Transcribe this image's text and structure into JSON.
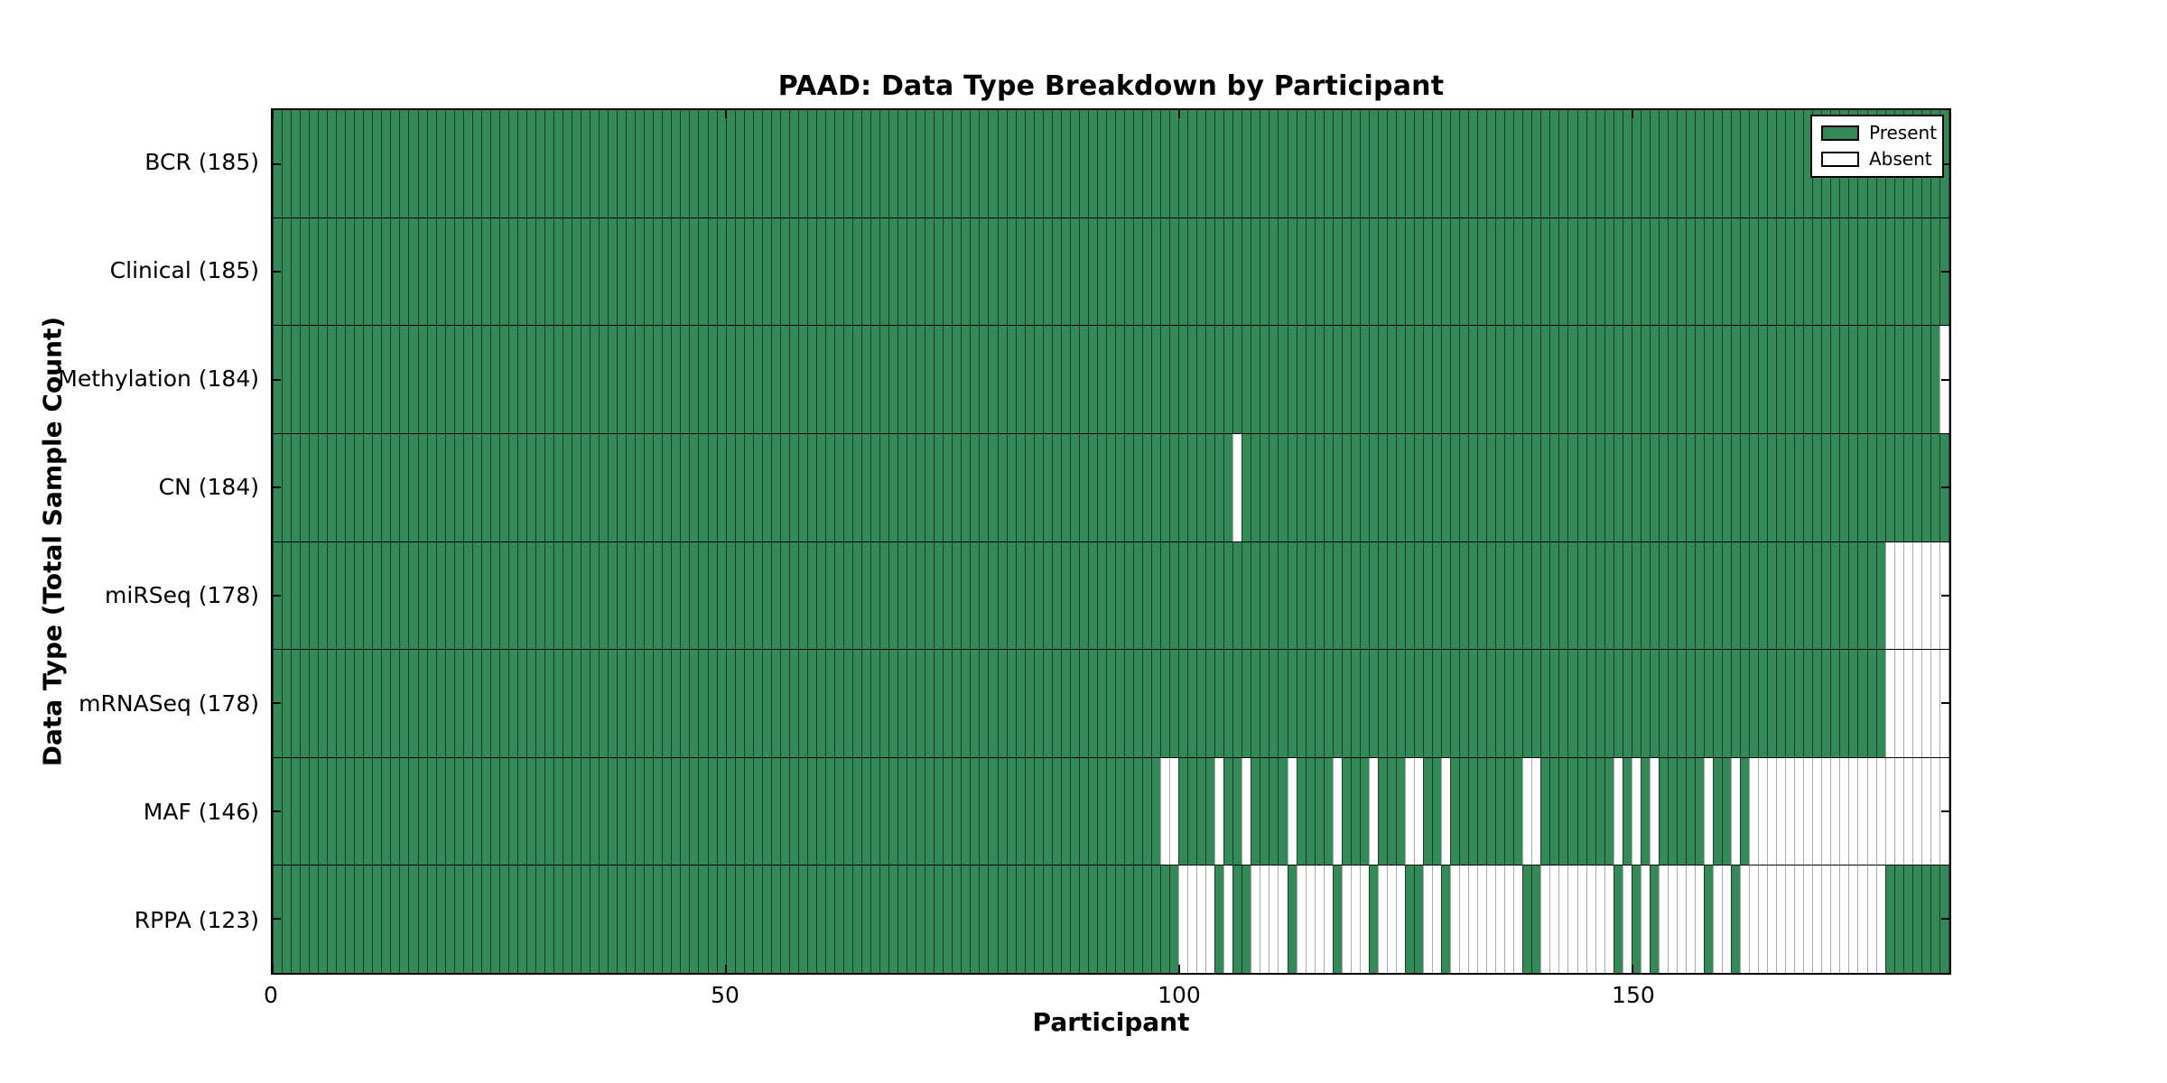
{
  "figure": {
    "background": "#ffffff"
  },
  "chart_data": {
    "type": "heatmap",
    "title": "PAAD: Data Type Breakdown by Participant",
    "xlabel": "Participant",
    "ylabel": "Data Type (Total Sample Count)",
    "n_participants": 185,
    "x_ticks": [
      0,
      50,
      100,
      150
    ],
    "x_range": [
      0,
      185
    ],
    "grid": false,
    "legend_position": "upper right",
    "legend": {
      "present_label": "Present",
      "absent_label": "Absent"
    },
    "colors": {
      "present": "#338a58",
      "absent": "#ffffff"
    },
    "value_encoding": "green bar = data type present for that participant, white bar = absent",
    "rows": [
      {
        "label": "BCR",
        "total_samples": 185,
        "display": "BCR (185)",
        "absent_ranges": []
      },
      {
        "label": "Clinical",
        "total_samples": 185,
        "display": "Clinical (185)",
        "absent_ranges": []
      },
      {
        "label": "Methylation",
        "total_samples": 184,
        "display": "Methylation (184)",
        "absent_ranges": [
          [
            184,
            184
          ]
        ]
      },
      {
        "label": "CN",
        "total_samples": 184,
        "display": "CN (184)",
        "absent_ranges": [
          [
            106,
            106
          ]
        ]
      },
      {
        "label": "miRSeq",
        "total_samples": 178,
        "display": "miRSeq (178)",
        "absent_ranges": [
          [
            178,
            184
          ]
        ]
      },
      {
        "label": "mRNASeq",
        "total_samples": 178,
        "display": "mRNASeq (178)",
        "absent_ranges": [
          [
            178,
            184
          ]
        ]
      },
      {
        "label": "MAF",
        "total_samples": 146,
        "display": "MAF (146)",
        "absent_ranges": [
          [
            98,
            99
          ],
          [
            104,
            104
          ],
          [
            107,
            107
          ],
          [
            112,
            112
          ],
          [
            117,
            117
          ],
          [
            121,
            121
          ],
          [
            125,
            126
          ],
          [
            129,
            129
          ],
          [
            138,
            139
          ],
          [
            148,
            148
          ],
          [
            150,
            150
          ],
          [
            152,
            152
          ],
          [
            158,
            158
          ],
          [
            161,
            161
          ],
          [
            163,
            184
          ]
        ]
      },
      {
        "label": "RPPA",
        "total_samples": 123,
        "display": "RPPA (123)",
        "absent_ranges": [
          [
            100,
            103
          ],
          [
            105,
            105
          ],
          [
            108,
            111
          ],
          [
            113,
            116
          ],
          [
            118,
            120
          ],
          [
            122,
            124
          ],
          [
            127,
            128
          ],
          [
            130,
            137
          ],
          [
            140,
            147
          ],
          [
            149,
            149
          ],
          [
            151,
            151
          ],
          [
            153,
            157
          ],
          [
            159,
            160
          ],
          [
            162,
            177
          ]
        ]
      }
    ]
  }
}
